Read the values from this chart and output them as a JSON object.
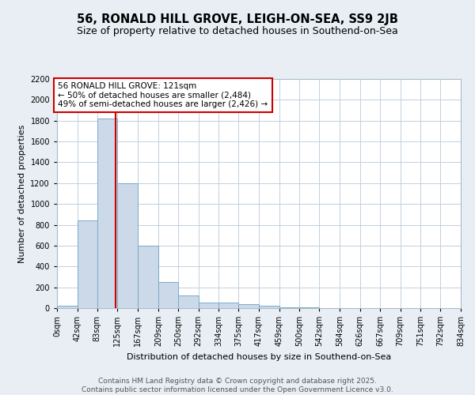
{
  "title": "56, RONALD HILL GROVE, LEIGH-ON-SEA, SS9 2JB",
  "subtitle": "Size of property relative to detached houses in Southend-on-Sea",
  "xlabel": "Distribution of detached houses by size in Southend-on-Sea",
  "ylabel": "Number of detached properties",
  "bin_edges": [
    0,
    42,
    83,
    125,
    167,
    209,
    250,
    292,
    334,
    375,
    417,
    459,
    500,
    542,
    584,
    626,
    667,
    709,
    751,
    792,
    834
  ],
  "bar_heights": [
    25,
    840,
    1820,
    1200,
    600,
    250,
    125,
    50,
    50,
    35,
    20,
    10,
    10,
    0,
    0,
    0,
    0,
    0,
    0,
    0
  ],
  "bar_color": "#ccd9e8",
  "bar_edge_color": "#7aaac8",
  "property_size": 121,
  "vline_color": "#cc0000",
  "annotation_text": "56 RONALD HILL GROVE: 121sqm\n← 50% of detached houses are smaller (2,484)\n49% of semi-detached houses are larger (2,426) →",
  "annotation_box_color": "#cc0000",
  "ylim": [
    0,
    2200
  ],
  "yticks": [
    0,
    200,
    400,
    600,
    800,
    1000,
    1200,
    1400,
    1600,
    1800,
    2000,
    2200
  ],
  "background_color": "#e8eef4",
  "plot_background_color": "#ffffff",
  "grid_color": "#c0d0e0",
  "title_fontsize": 10.5,
  "subtitle_fontsize": 9,
  "axis_label_fontsize": 8,
  "tick_fontsize": 7,
  "annotation_fontsize": 7.5,
  "footer_text": "Contains HM Land Registry data © Crown copyright and database right 2025.\nContains public sector information licensed under the Open Government Licence v3.0.",
  "footer_fontsize": 6.5
}
